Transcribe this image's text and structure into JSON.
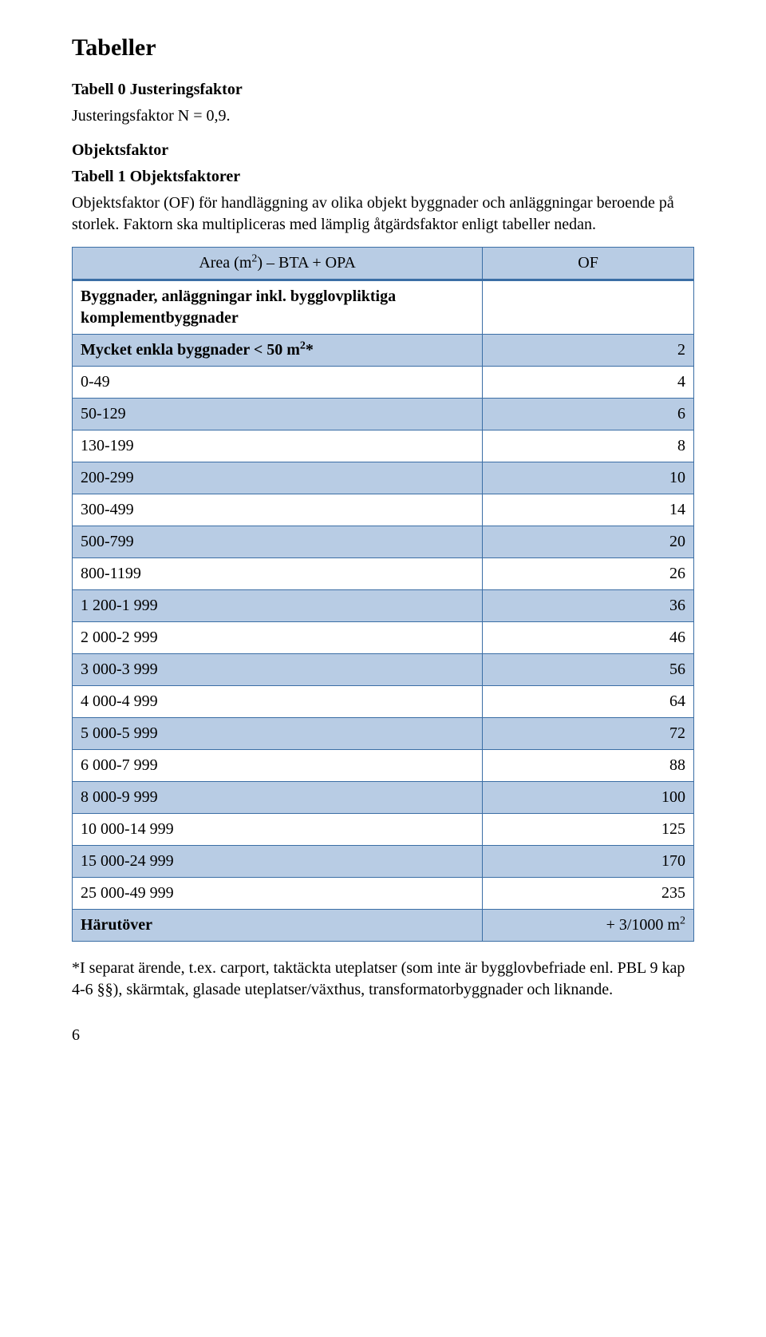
{
  "title": "Tabeller",
  "tabell0": {
    "heading": "Tabell 0 Justeringsfaktor",
    "line": "Justeringsfaktor N = 0,9."
  },
  "objektsfaktor_heading": "Objektsfaktor",
  "tabell1": {
    "heading": "Tabell 1 Objektsfaktorer",
    "intro": "Objektsfaktor (OF) för handläggning av olika objekt byggnader och anläggningar beroende på storlek. Faktorn ska multipliceras med lämplig åtgärdsfaktor enligt tabeller nedan."
  },
  "table": {
    "header_left_pre": "Area (m",
    "header_left_sup": "2",
    "header_left_post": ") – BTA + OPA",
    "header_right": "OF",
    "subheader_bold": "Byggnader, anläggningar inkl. bygglovpliktiga komplementbyggnader",
    "rows": [
      {
        "label_pre": "Mycket enkla byggnader < 50 m",
        "label_sup": "2",
        "label_post": "*",
        "bold": true,
        "value": "2"
      },
      {
        "label": "0-49",
        "value": "4"
      },
      {
        "label": "50-129",
        "value": "6"
      },
      {
        "label": "130-199",
        "value": "8"
      },
      {
        "label": "200-299",
        "value": "10"
      },
      {
        "label": "300-499",
        "value": "14"
      },
      {
        "label": "500-799",
        "value": "20"
      },
      {
        "label": "800-1199",
        "value": "26"
      },
      {
        "label": "1 200-1 999",
        "value": "36"
      },
      {
        "label": "2 000-2 999",
        "value": "46"
      },
      {
        "label": "3 000-3 999",
        "value": "56"
      },
      {
        "label": "4 000-4 999",
        "value": "64"
      },
      {
        "label": "5 000-5 999",
        "value": "72"
      },
      {
        "label": "6 000-7 999",
        "value": "88"
      },
      {
        "label": "8 000-9 999",
        "value": "100"
      },
      {
        "label": "10 000-14 999",
        "value": "125"
      },
      {
        "label": "15 000-24 999",
        "value": "170"
      },
      {
        "label": "25 000-49 999",
        "value": "235"
      },
      {
        "label": "Härutöver",
        "bold": true,
        "value_pre": "+ 3/1000 m",
        "value_sup": "2"
      }
    ],
    "border_color": "#3b6ea5",
    "row_colors": [
      "#ffffff",
      "#b8cce4"
    ],
    "header_bg": "#b8cce4"
  },
  "footnote": "*I separat ärende, t.ex. carport, taktäckta uteplatser (som inte är bygglovbefriade enl. PBL 9 kap 4-6 §§), skärmtak, glasade uteplatser/växthus, transformatorbyggnader och liknande.",
  "page_number": "6"
}
